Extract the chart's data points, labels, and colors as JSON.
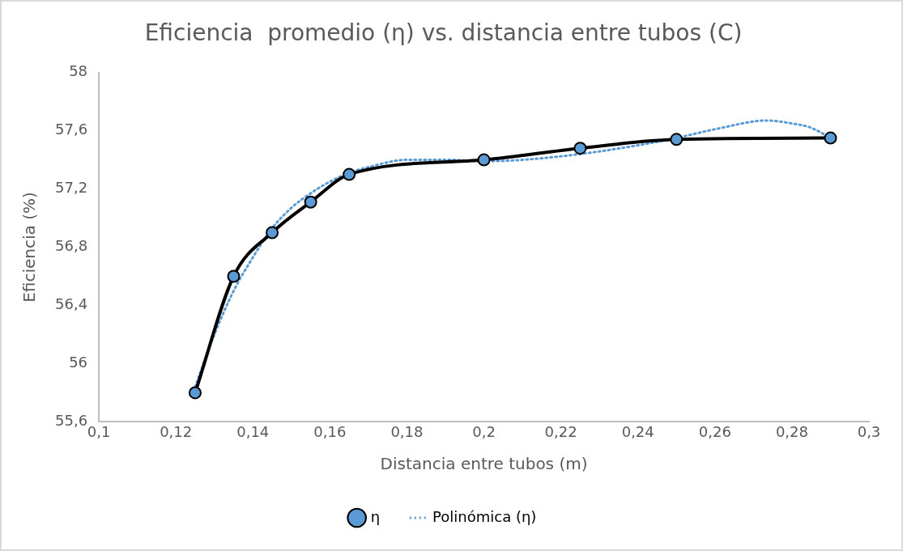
{
  "chart_data": {
    "type": "line",
    "title": "Eficiencia  promedio (η) vs. distancia entre tubos (C)",
    "xlabel": "Distancia entre tubos (m)",
    "ylabel": "Eficiencia (%)",
    "x": [
      0.125,
      0.135,
      0.145,
      0.155,
      0.165,
      0.2,
      0.225,
      0.25,
      0.29
    ],
    "series": [
      {
        "name": "η",
        "color": "#000000",
        "marker": "circle",
        "line_style": "solid",
        "values": [
          55.8,
          56.6,
          56.9,
          57.11,
          57.3,
          57.4,
          57.48,
          57.54,
          57.55
        ]
      },
      {
        "name": "Polinómica (η)",
        "type": "line",
        "color": "#5b9bd5",
        "marker": "none",
        "line_style": "dotted",
        "x": [
          0.125,
          0.13,
          0.135,
          0.14,
          0.145,
          0.15,
          0.155,
          0.16,
          0.165,
          0.17,
          0.18,
          0.19,
          0.2,
          0.21,
          0.225,
          0.24,
          0.25,
          0.26,
          0.2735,
          0.28,
          0.285,
          0.29
        ],
        "values": [
          55.84,
          56.2,
          56.5,
          56.73,
          56.93,
          57.07,
          57.17,
          57.25,
          57.31,
          57.35,
          57.4,
          57.4,
          57.39,
          57.4,
          57.44,
          57.5,
          57.55,
          57.61,
          57.67,
          57.65,
          57.62,
          57.55
        ]
      }
    ],
    "xlim": [
      0.1,
      0.3
    ],
    "xticks": [
      {
        "value": 0.1,
        "label": "0,1"
      },
      {
        "value": 0.12,
        "label": "0,12"
      },
      {
        "value": 0.14,
        "label": "0,14"
      },
      {
        "value": 0.16,
        "label": "0,16"
      },
      {
        "value": 0.18,
        "label": "0,18"
      },
      {
        "value": 0.2,
        "label": "0,2"
      },
      {
        "value": 0.22,
        "label": "0,22"
      },
      {
        "value": 0.24,
        "label": "0,24"
      },
      {
        "value": 0.26,
        "label": "0,26"
      },
      {
        "value": 0.28,
        "label": "0,28"
      },
      {
        "value": 0.3,
        "label": "0,3"
      }
    ],
    "ylim": [
      55.6,
      58
    ],
    "yticks": [
      {
        "value": 55.6,
        "label": "55,6"
      },
      56,
      {
        "value": 56.4,
        "label": "56,4"
      },
      {
        "value": 56.8,
        "label": "56,8"
      },
      {
        "value": 57.2,
        "label": "57,2"
      },
      {
        "value": 57.6,
        "label": "57,6"
      },
      58
    ],
    "grid": false,
    "legend": "bottom"
  }
}
